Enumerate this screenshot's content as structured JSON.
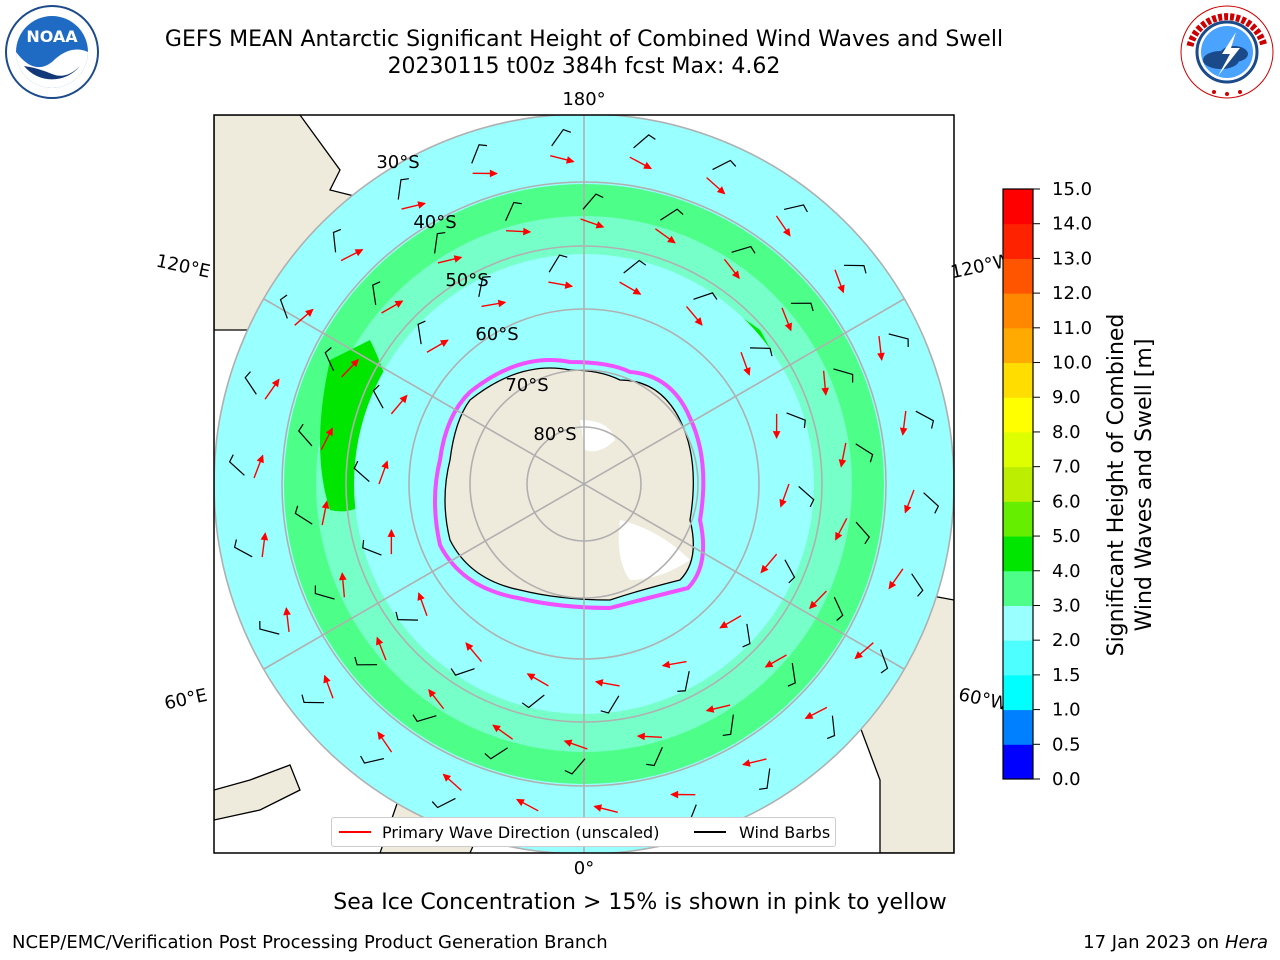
{
  "title": {
    "line1": "GEFS MEAN Antarctic Significant Height of Combined Wind Waves and Swell",
    "line2": "20230115 t00z 384h fcst   Max: 4.62"
  },
  "logos": {
    "left": {
      "name": "noaa-logo",
      "text": "NOAA"
    },
    "right": {
      "name": "nws-logo",
      "text": "NATIONAL WEATHER SERVICE"
    }
  },
  "map": {
    "projection": "south-polar-stereographic",
    "longitude_labels": {
      "top": "180°",
      "bottom": "0°",
      "left_upper": "120°E",
      "left_lower": "60°E",
      "right_upper": "120°W",
      "right_lower": "60°W"
    },
    "latitude_labels": [
      "30°S",
      "40°S",
      "50°S",
      "60°S",
      "70°S",
      "80°S"
    ],
    "colors": {
      "land": "#efebdc",
      "ocean_low": "#99ffff",
      "ocean_mid": "#4dff88",
      "ocean_high": "#00e600",
      "sea_ice": "#ff33ff",
      "wave_arrow": "#ff0000",
      "wind_barb": "#000000",
      "grid": "#b0b0b0"
    }
  },
  "colorbar": {
    "label_line1": "Significant Height of Combined",
    "label_line2": "Wind Waves and Swell [m]",
    "ticks": [
      "0.0",
      "0.5",
      "1.0",
      "1.5",
      "2.0",
      "3.0",
      "4.0",
      "5.0",
      "6.0",
      "7.0",
      "8.0",
      "9.0",
      "10.0",
      "11.0",
      "12.0",
      "13.0",
      "14.0",
      "15.0"
    ],
    "colors": [
      "#0000ff",
      "#0080ff",
      "#00ffff",
      "#4dffff",
      "#99ffff",
      "#4dff88",
      "#00e600",
      "#66ee00",
      "#bbee00",
      "#ddff00",
      "#ffff00",
      "#ffdd00",
      "#ffaa00",
      "#ff8800",
      "#ff5500",
      "#ff2200",
      "#ff0000"
    ]
  },
  "legend": {
    "wave_label": "Primary Wave Direction (unscaled)",
    "barb_label": "Wind Barbs"
  },
  "sea_ice_note": "Sea Ice Concentration > 15% is shown in pink to yellow",
  "footer": {
    "left": "NCEP/EMC/Verification Post Processing Product Generation Branch",
    "right_prefix": "17 Jan 2023 on ",
    "right_host": "Hera"
  }
}
